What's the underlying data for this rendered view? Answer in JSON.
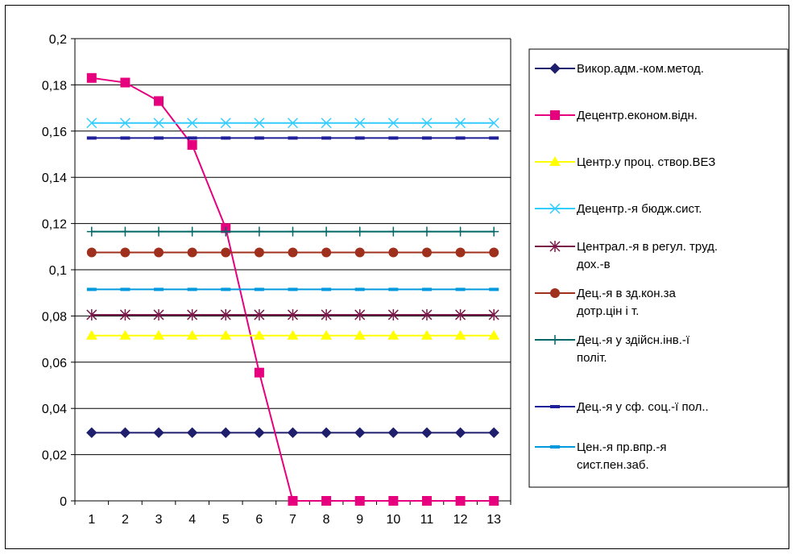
{
  "chart_data": {
    "type": "line",
    "title": "",
    "xlabel": "",
    "ylabel": "",
    "x": [
      1,
      2,
      3,
      4,
      5,
      6,
      7,
      8,
      9,
      10,
      11,
      12,
      13
    ],
    "x_tick_labels": [
      "1",
      "2",
      "3",
      "4",
      "5",
      "6",
      "7",
      "8",
      "9",
      "10",
      "11",
      "12",
      "13"
    ],
    "ylim": [
      0,
      0.2
    ],
    "y_ticks": [
      0,
      0.02,
      0.04,
      0.06,
      0.08,
      0.1,
      0.12,
      0.14,
      0.16,
      0.18,
      0.2
    ],
    "y_tick_labels": [
      "0",
      "0,02",
      "0,04",
      "0,06",
      "0,08",
      "0,1",
      "0,12",
      "0,14",
      "0,16",
      "0,18",
      "0,2"
    ],
    "grid": "horizontal",
    "legend_position": "right",
    "series": [
      {
        "name": "Викор.адм.-ком.метод.",
        "legend_lines": [
          "Викор.адм.-ком.метод."
        ],
        "color": "#1f1f6e",
        "marker": "diamond",
        "values": [
          0.0295,
          0.0295,
          0.0295,
          0.0295,
          0.0295,
          0.0295,
          0.0295,
          0.0295,
          0.0295,
          0.0295,
          0.0295,
          0.0295,
          0.0295
        ]
      },
      {
        "name": "Децентр.економ.відн.",
        "legend_lines": [
          "Децентр.економ.відн."
        ],
        "color": "#e6007e",
        "marker": "square",
        "values": [
          0.183,
          0.181,
          0.173,
          0.154,
          0.118,
          0.0555,
          0,
          0,
          0,
          0,
          0,
          0,
          0
        ]
      },
      {
        "name": "Центр.у проц. створ.ВЕЗ",
        "legend_lines": [
          "Центр.у проц. створ.ВЕЗ"
        ],
        "color": "#ffff00",
        "marker": "triangle",
        "values": [
          0.0715,
          0.0715,
          0.0715,
          0.0715,
          0.0715,
          0.0715,
          0.0715,
          0.0715,
          0.0715,
          0.0715,
          0.0715,
          0.0715,
          0.0715
        ]
      },
      {
        "name": "Децентр.-я бюдж.сист.",
        "legend_lines": [
          "Децентр.-я бюдж.сист."
        ],
        "color": "#33ccff",
        "marker": "x",
        "values": [
          0.1635,
          0.1635,
          0.1635,
          0.1635,
          0.1635,
          0.1635,
          0.1635,
          0.1635,
          0.1635,
          0.1635,
          0.1635,
          0.1635,
          0.1635
        ]
      },
      {
        "name": "Централ.-я в регул. труд. дох.-в",
        "legend_lines": [
          "Централ.-я в регул. труд.",
          "дох.-в"
        ],
        "color": "#7a1a4a",
        "marker": "star",
        "values": [
          0.0805,
          0.0805,
          0.0805,
          0.0805,
          0.0805,
          0.0805,
          0.0805,
          0.0805,
          0.0805,
          0.0805,
          0.0805,
          0.0805,
          0.0805
        ]
      },
      {
        "name": "Дец.-я в зд.кон.за дотр.цін і т.",
        "legend_lines": [
          "Дец.-я в зд.кон.за",
          "дотр.цін і т."
        ],
        "color": "#a0301e",
        "marker": "circle",
        "values": [
          0.1075,
          0.1075,
          0.1075,
          0.1075,
          0.1075,
          0.1075,
          0.1075,
          0.1075,
          0.1075,
          0.1075,
          0.1075,
          0.1075,
          0.1075
        ]
      },
      {
        "name": "Дец.-я у здійсн.інв.-ї політ.",
        "legend_lines": [
          "Дец.-я у здійсн.інв.-ї",
          "політ."
        ],
        "color": "#006666",
        "marker": "plus",
        "values": [
          0.1165,
          0.1165,
          0.1165,
          0.1165,
          0.1165,
          0.1165,
          0.1165,
          0.1165,
          0.1165,
          0.1165,
          0.1165,
          0.1165,
          0.1165
        ]
      },
      {
        "name": "Дец.-я у сф. соц.-ї пол..",
        "legend_lines": [
          "Дец.-я у сф. соц.-ї пол.."
        ],
        "color": "#1f1f99",
        "marker": "dash",
        "values": [
          0.157,
          0.157,
          0.157,
          0.157,
          0.157,
          0.157,
          0.157,
          0.157,
          0.157,
          0.157,
          0.157,
          0.157,
          0.157
        ]
      },
      {
        "name": "Цен.-я пр.впр.-я сист.пен.заб.",
        "legend_lines": [
          "Цен.-я пр.впр.-я",
          "сист.пен.заб."
        ],
        "color": "#0099dd",
        "marker": "dash",
        "values": [
          0.0915,
          0.0915,
          0.0915,
          0.0915,
          0.0915,
          0.0915,
          0.0915,
          0.0915,
          0.0915,
          0.0915,
          0.0915,
          0.0915,
          0.0915
        ]
      }
    ]
  }
}
